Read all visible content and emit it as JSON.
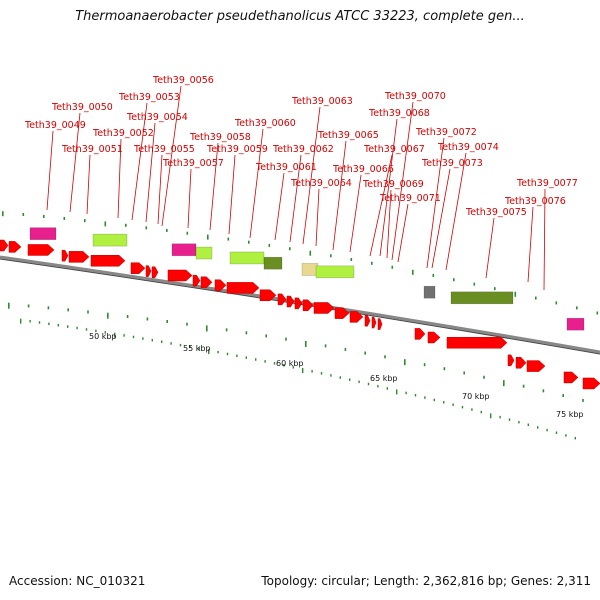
{
  "title": "Thermoanaerobacter pseudethanolicus ATCC 33223, complete gen...",
  "footer": {
    "accession": "Accession: NC_010321",
    "topology": "Topology: circular; Length: 2,362,816 bp; Genes: 2,311"
  },
  "colors": {
    "gene": "#ff0000",
    "backbone": "#888888",
    "label": "#d40000",
    "tick": "#2e8b2e",
    "magenta": "#e8208e",
    "lime": "#b0f040",
    "olive": "#6b8e23",
    "tan": "#e8d890",
    "gray": "#707070"
  },
  "gene_labels": [
    "Teth39_0049",
    "Teth39_0050",
    "Teth39_0051",
    "Teth39_0052",
    "Teth39_0053",
    "Teth39_0054",
    "Teth39_0055",
    "Teth39_0056",
    "Teth39_0057",
    "Teth39_0058",
    "Teth39_0059",
    "Teth39_0060",
    "Teth39_0061",
    "Teth39_0062",
    "Teth39_0063",
    "Teth39_0064",
    "Teth39_0065",
    "Teth39_0066",
    "Teth39_0067",
    "Teth39_0068",
    "Teth39_0069",
    "Teth39_0070",
    "Teth39_0071",
    "Teth39_0072",
    "Teth39_0073",
    "Teth39_0074",
    "Teth39_0075",
    "Teth39_0076",
    "Teth39_0077"
  ],
  "scale_labels": [
    "50 kbp",
    "55 kbp",
    "60 kbp",
    "65 kbp",
    "70 kbp",
    "75 kbp"
  ]
}
